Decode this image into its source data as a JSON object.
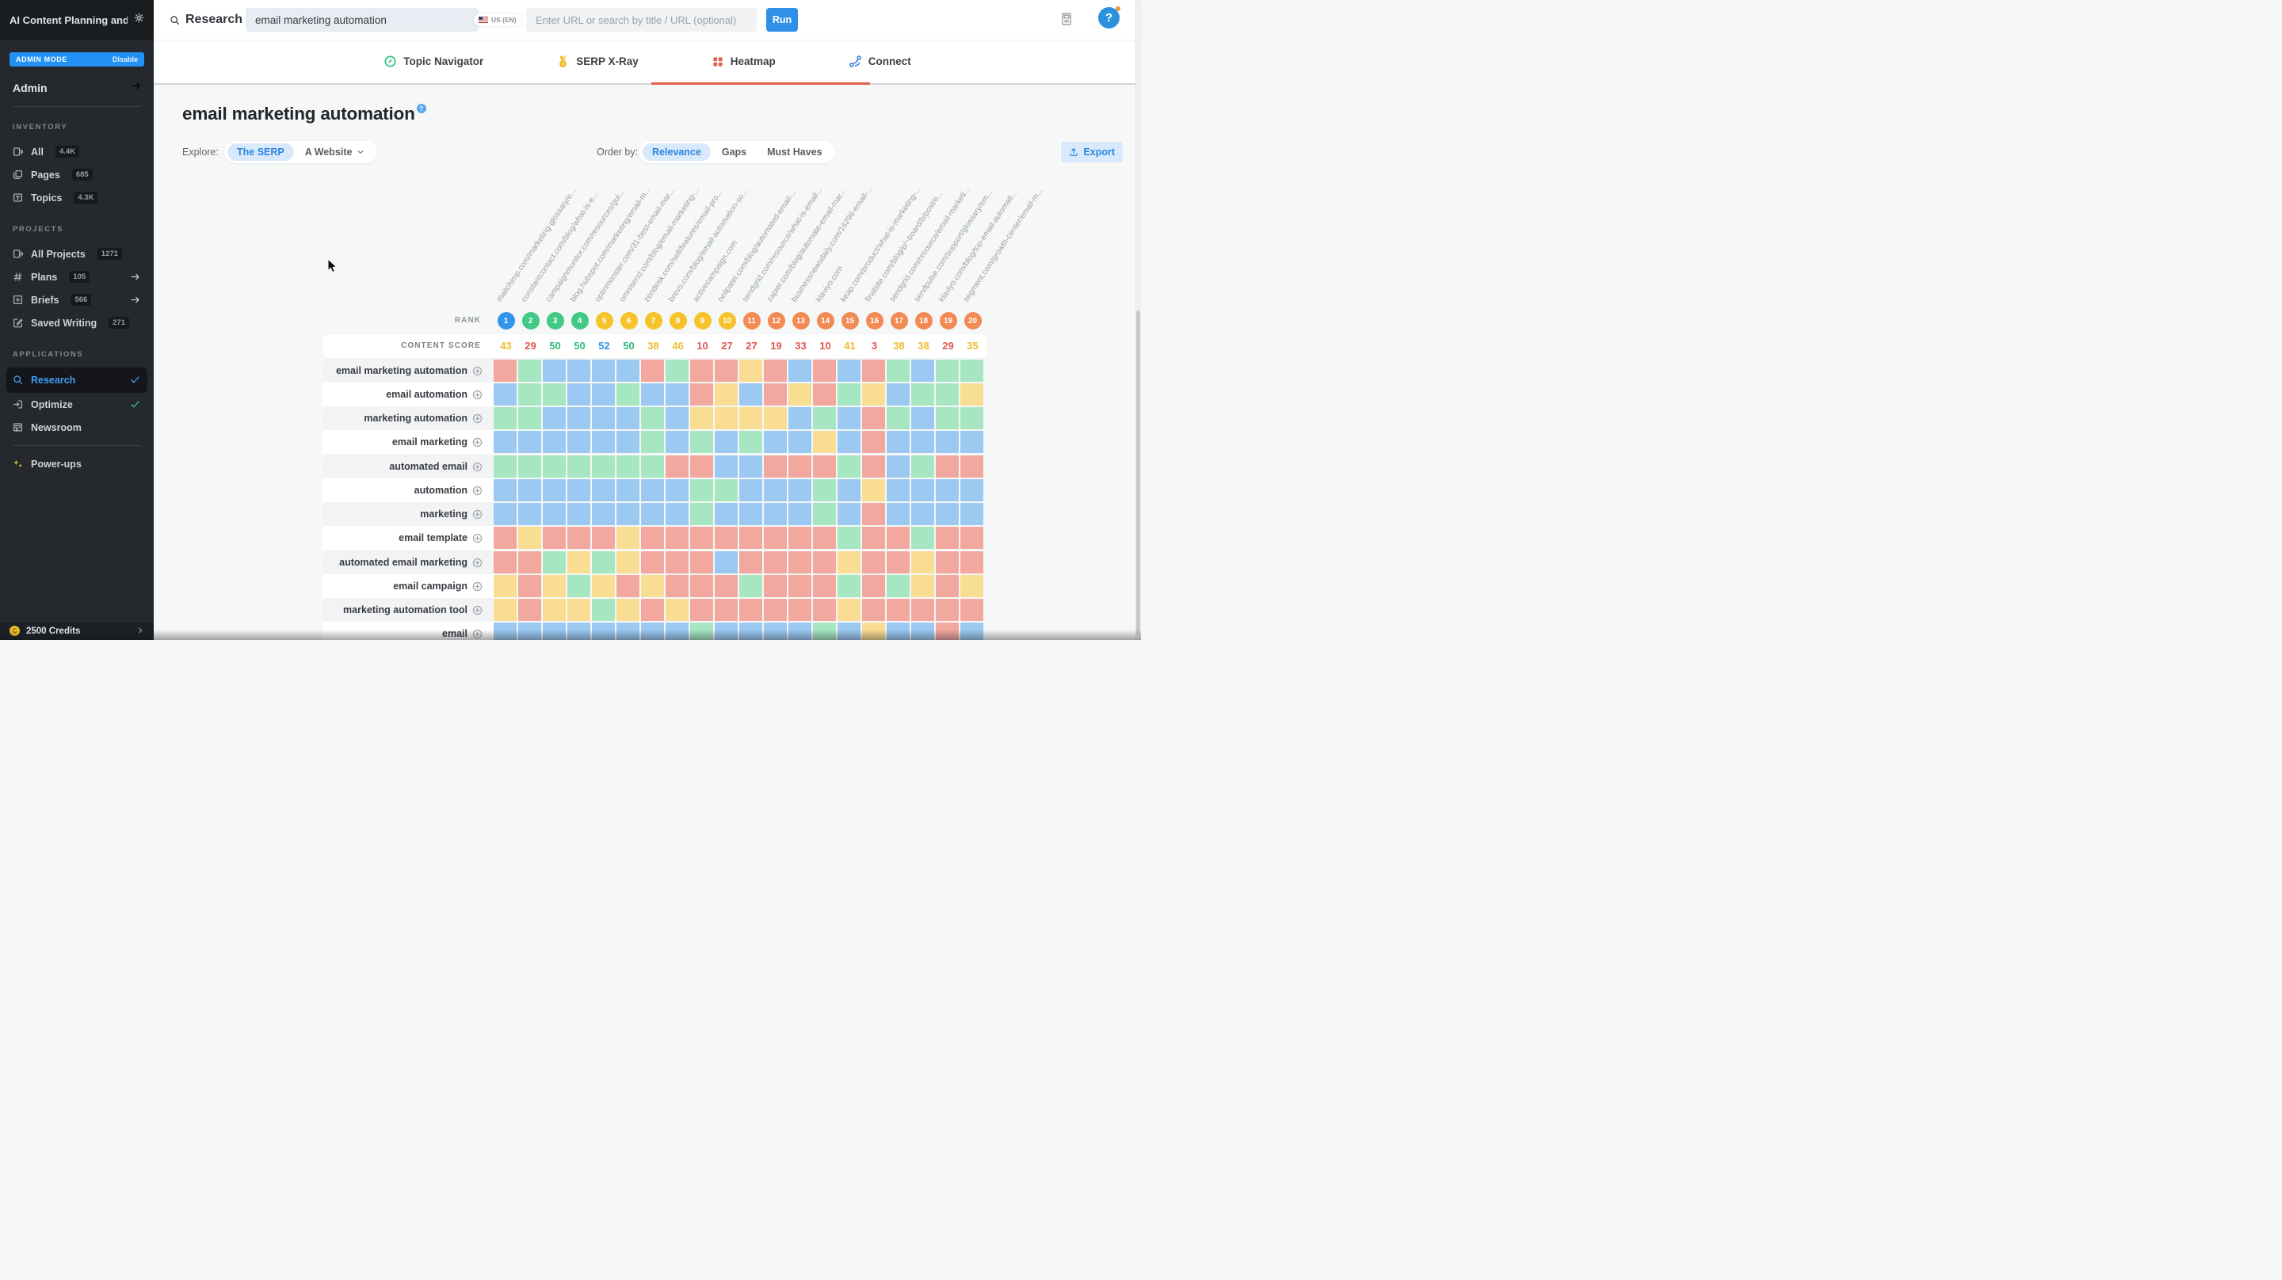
{
  "colors": {
    "cell": {
      "r": "#f2a79f",
      "g": "#a6e7c2",
      "b": "#9bc9f2",
      "y": "#f8dd92"
    },
    "rank": {
      "blue": "#3095e8",
      "green": "#41c985",
      "yellow": "#f7c32b",
      "orange": "#f28a54"
    },
    "score": {
      "yellow": "#eebc2f",
      "red": "#e05551",
      "green": "#2fba77",
      "blue": "#3593e6"
    }
  },
  "sidebar": {
    "title": "AI Content Planning and ...",
    "admin_banner": {
      "label": "ADMIN MODE",
      "action": "Disable"
    },
    "admin_link": "Admin",
    "sections": [
      {
        "heading": "INVENTORY",
        "items": [
          {
            "label": "All",
            "icon": "columns",
            "badge": "4.4K"
          },
          {
            "label": "Pages",
            "icon": "pages",
            "badge": "685"
          },
          {
            "label": "Topics",
            "icon": "topics",
            "badge": "4.3K"
          }
        ]
      },
      {
        "heading": "PROJECTS",
        "items": [
          {
            "label": "All Projects",
            "icon": "columns",
            "badge": "1271"
          },
          {
            "label": "Plans",
            "icon": "hash",
            "badge": "105",
            "arrow": true
          },
          {
            "label": "Briefs",
            "icon": "brief",
            "badge": "566",
            "arrow": true
          },
          {
            "label": "Saved Writing",
            "icon": "pencil",
            "badge": "271"
          }
        ]
      },
      {
        "heading": "APPLICATIONS",
        "items": [
          {
            "label": "Research",
            "icon": "search",
            "active": true,
            "check": true
          },
          {
            "label": "Optimize",
            "icon": "optimize",
            "check": true
          },
          {
            "label": "Newsroom",
            "icon": "newsroom"
          }
        ]
      }
    ],
    "powerups": "Power-ups",
    "credits": "2500 Credits"
  },
  "topbar": {
    "search_label": "Research",
    "query": "email marketing automation",
    "locale": "US (EN)",
    "url_placeholder": "Enter URL or search by title / URL (optional)",
    "run_label": "Run",
    "help_label": "?"
  },
  "tabs": [
    {
      "label": "Topic Navigator",
      "icon": "tab-topic",
      "active": false
    },
    {
      "label": "SERP X-Ray",
      "icon": "tab-serp",
      "active": false
    },
    {
      "label": "Heatmap",
      "icon": "tab-heatmap",
      "active": true
    },
    {
      "label": "Connect",
      "icon": "tab-connect",
      "active": false
    }
  ],
  "page": {
    "title": "email marketing automation",
    "title_help": "?",
    "explore_label": "Explore:",
    "explore_serp": "The SERP",
    "explore_website": "A Website",
    "order_label": "Order by:",
    "order_relevance": "Relevance",
    "order_gaps": "Gaps",
    "order_musthaves": "Must Haves",
    "export_label": "Export"
  },
  "heatmap": {
    "rank_label": "RANK",
    "score_label": "CONTENT SCORE",
    "columns": [
      {
        "url": "mailchimp.com/marketing-glossary/e...",
        "rank": 1,
        "rank_color": "blue",
        "score": 43,
        "score_color": "yellow"
      },
      {
        "url": "constantcontact.com/blog/what-is-e...",
        "rank": 2,
        "rank_color": "green",
        "score": 29,
        "score_color": "red"
      },
      {
        "url": "campaignmonitor.com/resources/gui...",
        "rank": 3,
        "rank_color": "green",
        "score": 50,
        "score_color": "green"
      },
      {
        "url": "blog.hubspot.com/marketing/email-m...",
        "rank": 4,
        "rank_color": "green",
        "score": 50,
        "score_color": "green"
      },
      {
        "url": "optinmonster.com/31-best-email-mar...",
        "rank": 5,
        "rank_color": "yellow",
        "score": 52,
        "score_color": "blue"
      },
      {
        "url": "omnisend.com/blog/email-marketing-...",
        "rank": 6,
        "rank_color": "yellow",
        "score": 50,
        "score_color": "green"
      },
      {
        "url": "zendesk.com/sell/features/email-pro...",
        "rank": 7,
        "rank_color": "yellow",
        "score": 38,
        "score_color": "yellow"
      },
      {
        "url": "brevo.com/blog/email-automation-so...",
        "rank": 8,
        "rank_color": "yellow",
        "score": 46,
        "score_color": "yellow"
      },
      {
        "url": "activecampaign.com",
        "rank": 9,
        "rank_color": "yellow",
        "score": 10,
        "score_color": "red"
      },
      {
        "url": "neilpatel.com/blog/automated-email-...",
        "rank": 10,
        "rank_color": "yellow",
        "score": 27,
        "score_color": "red"
      },
      {
        "url": "sendgrid.com/resource/what-is-email...",
        "rank": 11,
        "rank_color": "orange",
        "score": 27,
        "score_color": "red"
      },
      {
        "url": "zapier.com/blog/automate-email-mar...",
        "rank": 12,
        "rank_color": "orange",
        "score": 19,
        "score_color": "red"
      },
      {
        "url": "businessnewsdaily.com/16296-email-...",
        "rank": 13,
        "rank_color": "orange",
        "score": 33,
        "score_color": "red"
      },
      {
        "url": "klaviyo.com",
        "rank": 14,
        "rank_color": "orange",
        "score": 10,
        "score_color": "red"
      },
      {
        "url": "keap.com/product/what-is-marketing-...",
        "rank": 15,
        "rank_color": "orange",
        "score": 41,
        "score_color": "yellow"
      },
      {
        "url": "finalsite.com/blog/p/~board/b/post/e...",
        "rank": 16,
        "rank_color": "orange",
        "score": 3,
        "score_color": "red"
      },
      {
        "url": "sendgrid.com/resource/email-marketi...",
        "rank": 17,
        "rank_color": "orange",
        "score": 38,
        "score_color": "yellow"
      },
      {
        "url": "sendpulse.com/support/glossary/em...",
        "rank": 18,
        "rank_color": "orange",
        "score": 38,
        "score_color": "yellow"
      },
      {
        "url": "klaviyo.com/blog/top-email-automati...",
        "rank": 19,
        "rank_color": "orange",
        "score": 29,
        "score_color": "red"
      },
      {
        "url": "segment.com/growth-center/email-m...",
        "rank": 20,
        "rank_color": "orange",
        "score": 35,
        "score_color": "yellow"
      }
    ],
    "rows": [
      {
        "topic": "email marketing automation",
        "cells": "rgbbbbrgrryrbrbrgbgg"
      },
      {
        "topic": "email automation",
        "cells": "bggbbgbbrybryrgybggy"
      },
      {
        "topic": "marketing automation",
        "cells": "ggbbbbgbyyyybgbrgbgg"
      },
      {
        "topic": "email marketing",
        "cells": "bbbbbbgbgbgbbybrbbbb"
      },
      {
        "topic": "automated email",
        "cells": "gggggggrrbbrrrgrbgrr"
      },
      {
        "topic": "automation",
        "cells": "bbbbbbbbggbbbgbybbbb"
      },
      {
        "topic": "marketing",
        "cells": "bbbbbbbbgbbbbgbrbbbb"
      },
      {
        "topic": "email template",
        "cells": "ryrrryrrrrrrrrgrrgrr"
      },
      {
        "topic": "automated email marketing",
        "cells": "rrgygyrrrbrrrryrryrr"
      },
      {
        "topic": "email campaign",
        "cells": "yrygyryrrrgrrrgrgyry"
      },
      {
        "topic": "marketing automation tool",
        "cells": "yryygyryrrrrrryrrrrr"
      },
      {
        "topic": "email",
        "cells": "bbbbbbbbgbbbbgbybbrb"
      }
    ]
  }
}
